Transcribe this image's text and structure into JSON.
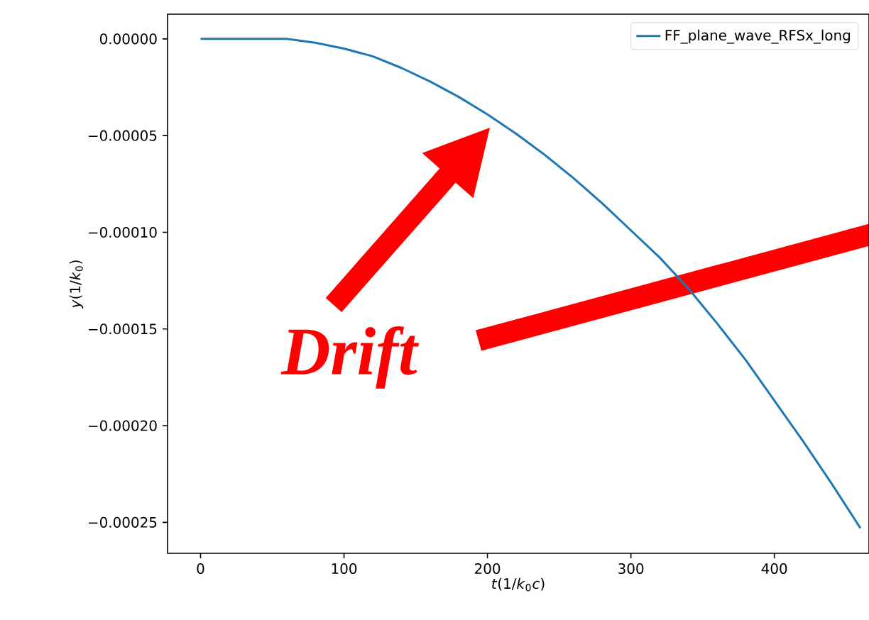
{
  "chart_data": {
    "type": "line",
    "xlabel": "*t*(1/*k*$_{0}$*c*)",
    "ylabel": "*y*(1/*k*$_{0}$)",
    "xlim": [
      -23,
      466
    ],
    "ylim": [
      -0.000266,
      1.28e-05
    ],
    "xticks": [
      0,
      100,
      200,
      300,
      400
    ],
    "yticks": [
      {
        "value": 0,
        "label": "0.00000"
      },
      {
        "value": -5e-05,
        "label": "−0.00005"
      },
      {
        "value": -0.0001,
        "label": "−0.00010"
      },
      {
        "value": -0.00015,
        "label": "−0.00015"
      },
      {
        "value": -0.0002,
        "label": "−0.00020"
      },
      {
        "value": -0.00025,
        "label": "−0.00025"
      }
    ],
    "legend": "top right",
    "annotations": [
      "Drift"
    ],
    "series": [
      {
        "name": "FF_plane_wave_RFSx_long",
        "color": "#1f77b4",
        "x": [
          0,
          20,
          40,
          60,
          80,
          100,
          120,
          140,
          160,
          180,
          200,
          220,
          240,
          260,
          280,
          300,
          320,
          340,
          360,
          380,
          400,
          420,
          440,
          460
        ],
        "values": [
          0,
          0,
          0,
          0,
          -2e-06,
          -5e-06,
          -9e-06,
          -1.5e-05,
          -2.2e-05,
          -3e-05,
          -3.9e-05,
          -4.9e-05,
          -6e-05,
          -7.2e-05,
          -8.5e-05,
          -9.9e-05,
          -0.000113,
          -0.000129,
          -0.000147,
          -0.000166,
          -0.000187,
          -0.000208,
          -0.00023,
          -0.000253
        ]
      }
    ]
  }
}
